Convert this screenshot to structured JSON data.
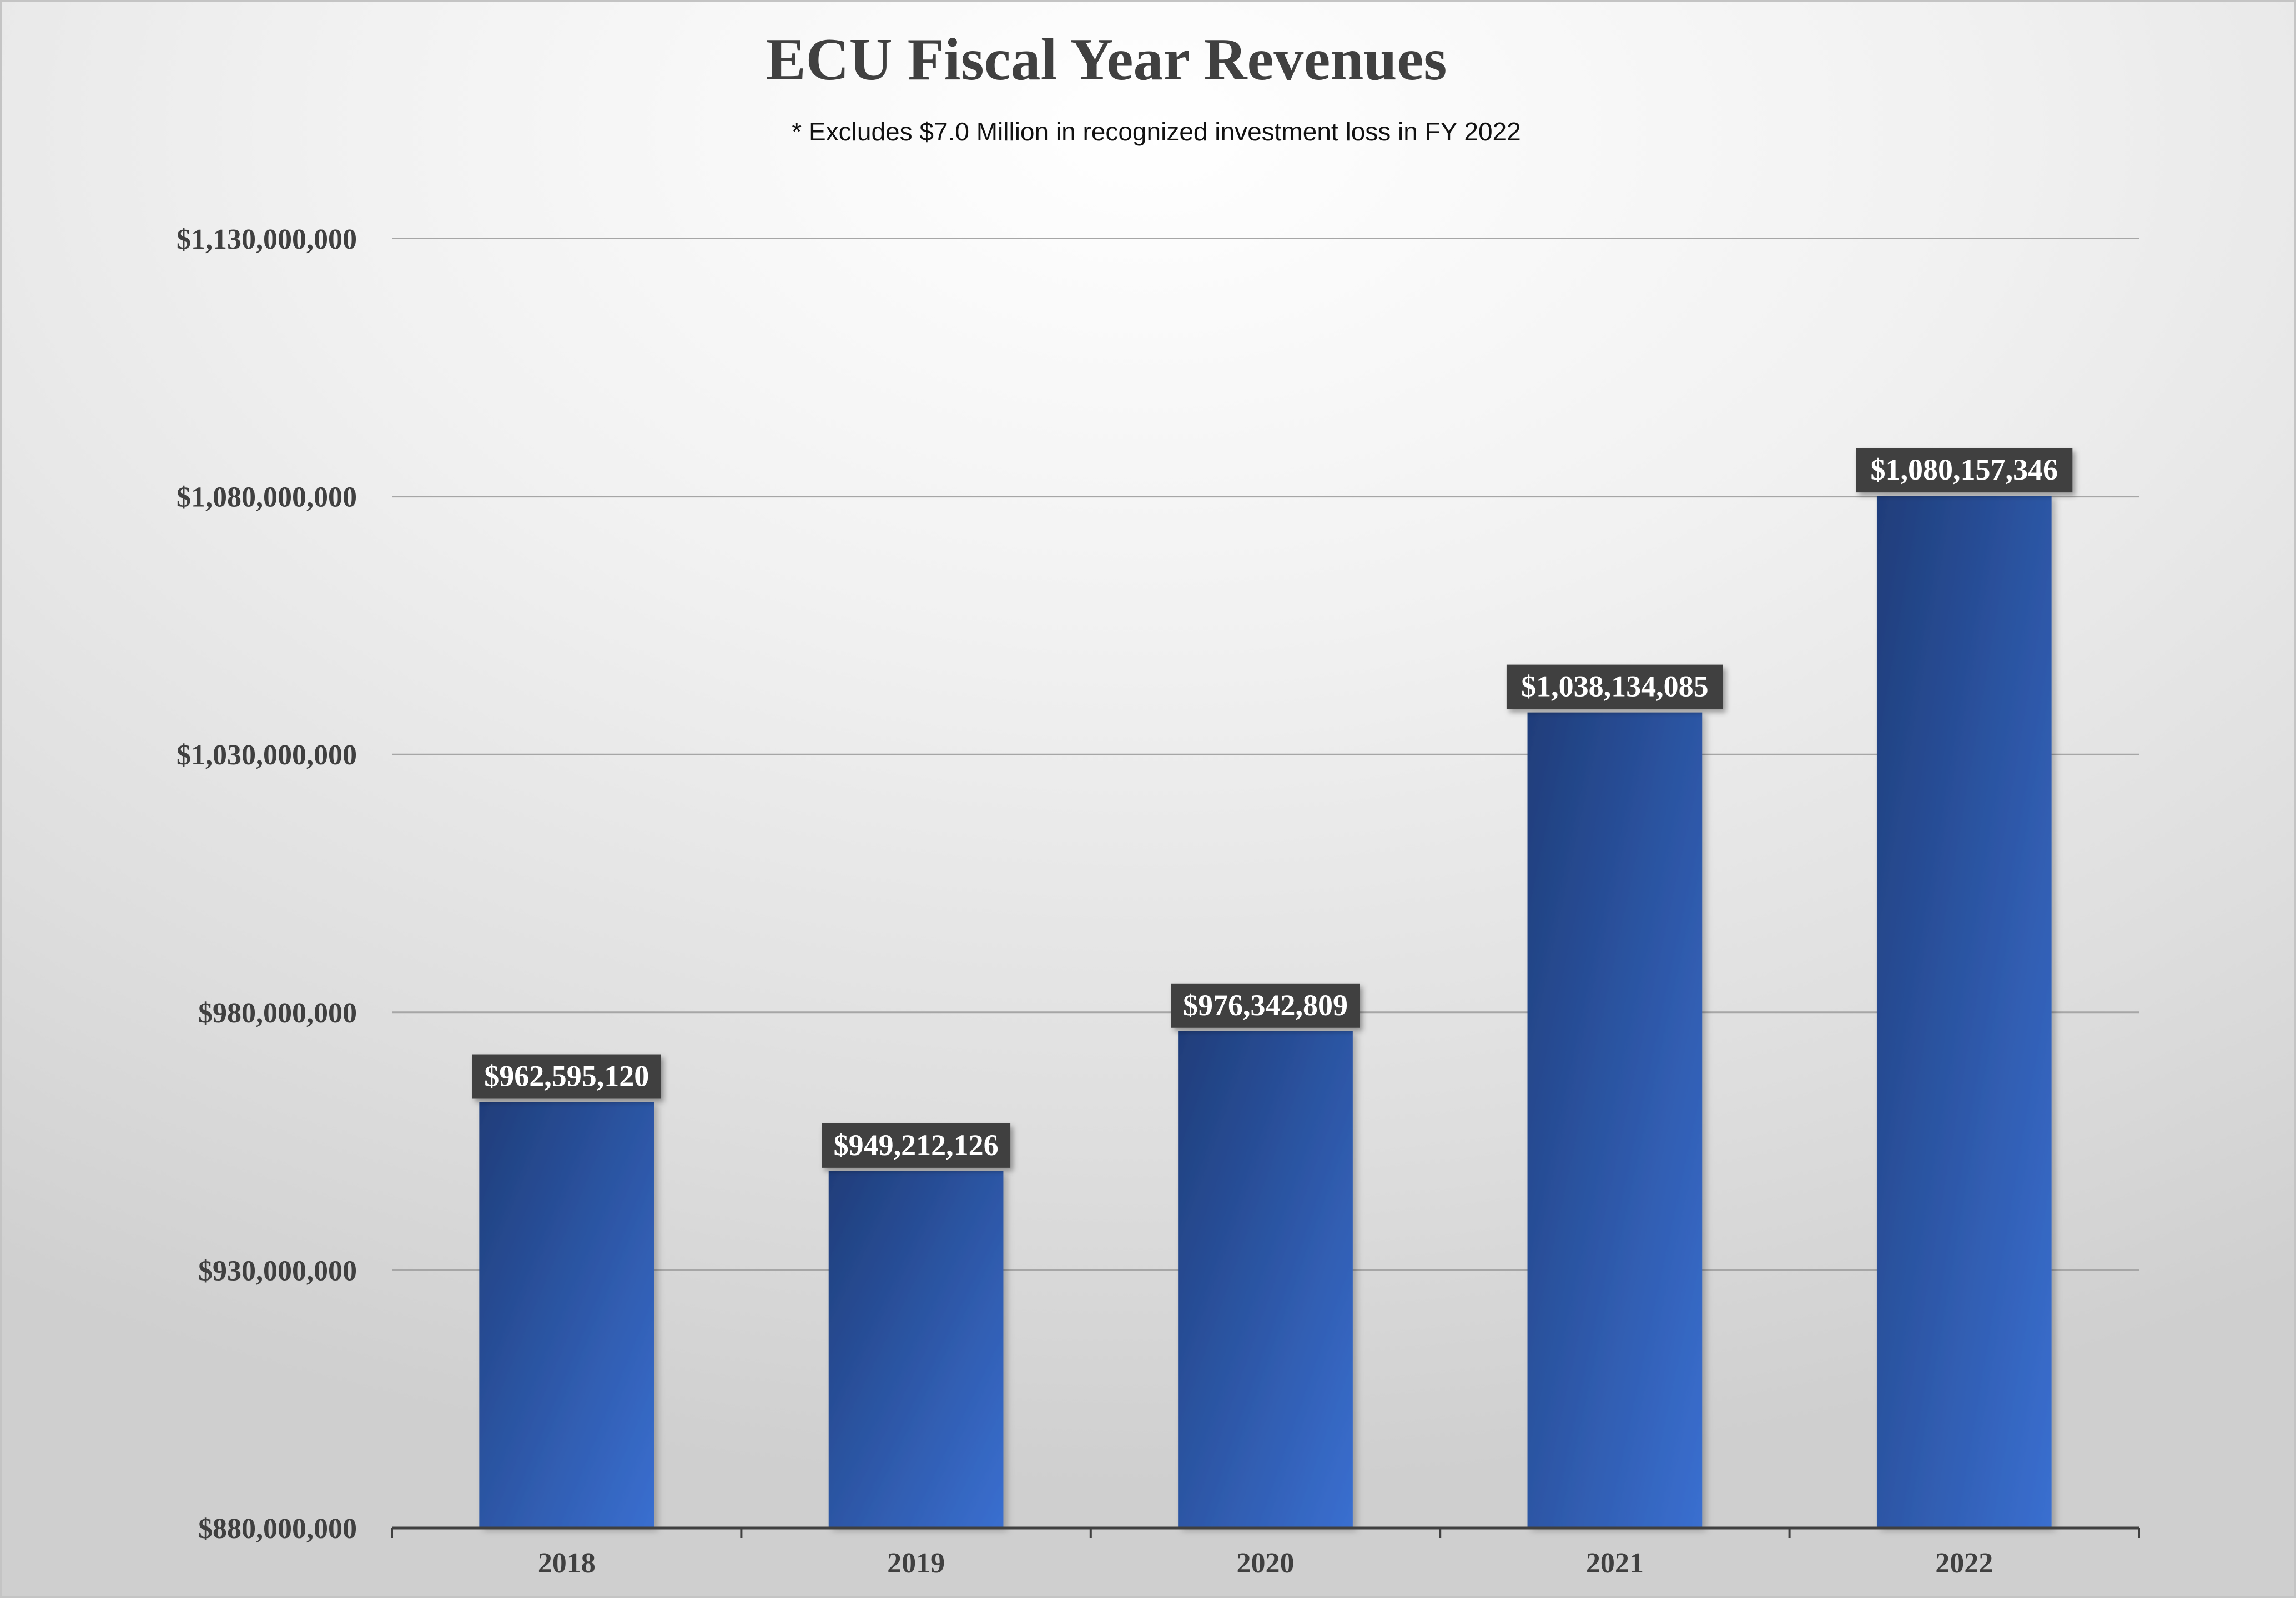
{
  "chart_data": {
    "type": "bar",
    "title": "ECU Fiscal Year Revenues",
    "subtitle": "* Excludes $7.0 Million in recognized investment loss in FY 2022",
    "xlabel": "",
    "ylabel": "",
    "categories": [
      "2018",
      "2019",
      "2020",
      "2021",
      "2022"
    ],
    "values": [
      962595120,
      949212126,
      976342809,
      1038134085,
      1080157346
    ],
    "data_labels": [
      "$962,595,120",
      "$949,212,126",
      "$976,342,809",
      "$1,038,134,085",
      "$1,080,157,346"
    ],
    "ylim": [
      880000000,
      1130000000
    ],
    "y_ticks": [
      880000000,
      930000000,
      980000000,
      1030000000,
      1080000000,
      1130000000
    ],
    "y_tick_labels": [
      "$880,000,000",
      "$930,000,000",
      "$980,000,000",
      "$1,030,000,000",
      "$1,080,000,000",
      "$1,130,000,000"
    ],
    "grid": true,
    "legend": "none",
    "colors": {
      "bar_dark": "#1f3d7a",
      "bar_light": "#3a6fd0",
      "gridline": "#a6a6a6",
      "axis": "#404040",
      "label_box": "#404040",
      "label_text": "#ffffff"
    }
  }
}
